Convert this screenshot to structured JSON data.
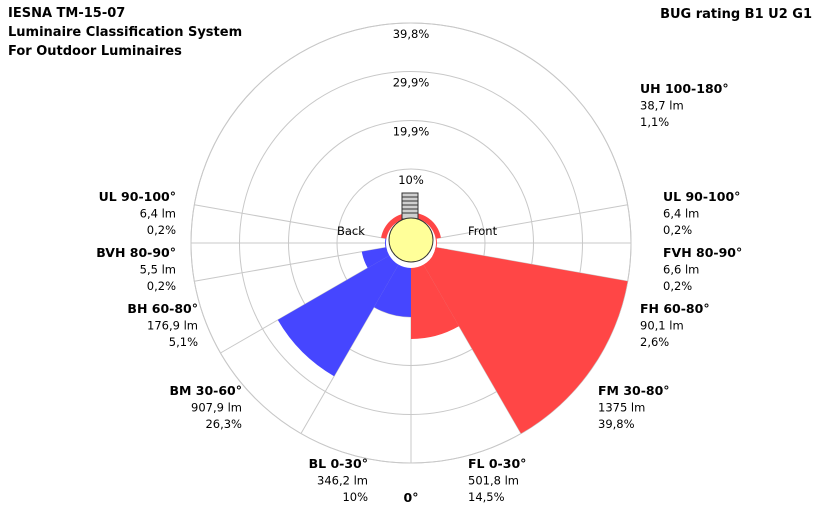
{
  "title_lines": [
    "IESNA TM-15-07",
    "Luminaire Classification System",
    "For Outdoor Luminaires"
  ],
  "bug_rating": "BUG rating B1 U2 G1",
  "chart_data": {
    "type": "polar-bar",
    "ring_labels": [
      "10%",
      "19,9%",
      "29,9%",
      "39,8%"
    ],
    "ring_values": [
      10,
      19.9,
      29.9,
      39.8
    ],
    "max_value": 39.8,
    "side_labels": {
      "back": "Back",
      "front": "Front"
    },
    "nadir_label": "0°",
    "colors": {
      "back": "#4646ff",
      "front": "#ff4646",
      "grid": "#c8c8c8",
      "lamp": "#ffff99"
    },
    "zones": [
      {
        "id": "bl",
        "side": "back",
        "name": "BL 0-30°",
        "lm": "346,2 lm",
        "pct_label": "10%",
        "value": 10.0
      },
      {
        "id": "bm",
        "side": "back",
        "name": "BM 30-60°",
        "lm": "907,9 lm",
        "pct_label": "26,3%",
        "value": 26.3
      },
      {
        "id": "bh",
        "side": "back",
        "name": "BH 60-80°",
        "lm": "176,9 lm",
        "pct_label": "5,1%",
        "value": 5.1
      },
      {
        "id": "bvh",
        "side": "back",
        "name": "BVH 80-90°",
        "lm": "5,5 lm",
        "pct_label": "0,2%",
        "value": 0.2
      },
      {
        "id": "ulb",
        "side": "back",
        "name": "UL 90-100°",
        "lm": "6,4 lm",
        "pct_label": "0,2%",
        "value": 0.2
      },
      {
        "id": "fl",
        "side": "front",
        "name": "FL 0-30°",
        "lm": "501,8 lm",
        "pct_label": "14,5%",
        "value": 14.5
      },
      {
        "id": "fm",
        "side": "front",
        "name": "FM 30-80°",
        "lm": "1375 lm",
        "pct_label": "39,8%",
        "value": 39.8
      },
      {
        "id": "fh",
        "side": "front",
        "name": "FH 60-80°",
        "lm": "90,1 lm",
        "pct_label": "2,6%",
        "value": 2.6
      },
      {
        "id": "fvh",
        "side": "front",
        "name": "FVH 80-90°",
        "lm": "6,6 lm",
        "pct_label": "0,2%",
        "value": 0.2
      },
      {
        "id": "ulf",
        "side": "front",
        "name": "UL 90-100°",
        "lm": "6,4 lm",
        "pct_label": "0,2%",
        "value": 0.2
      },
      {
        "id": "uh",
        "side": "front",
        "name": "UH 100-180°",
        "lm": "38,7 lm",
        "pct_label": "1,1%",
        "value": 1.1
      }
    ]
  }
}
